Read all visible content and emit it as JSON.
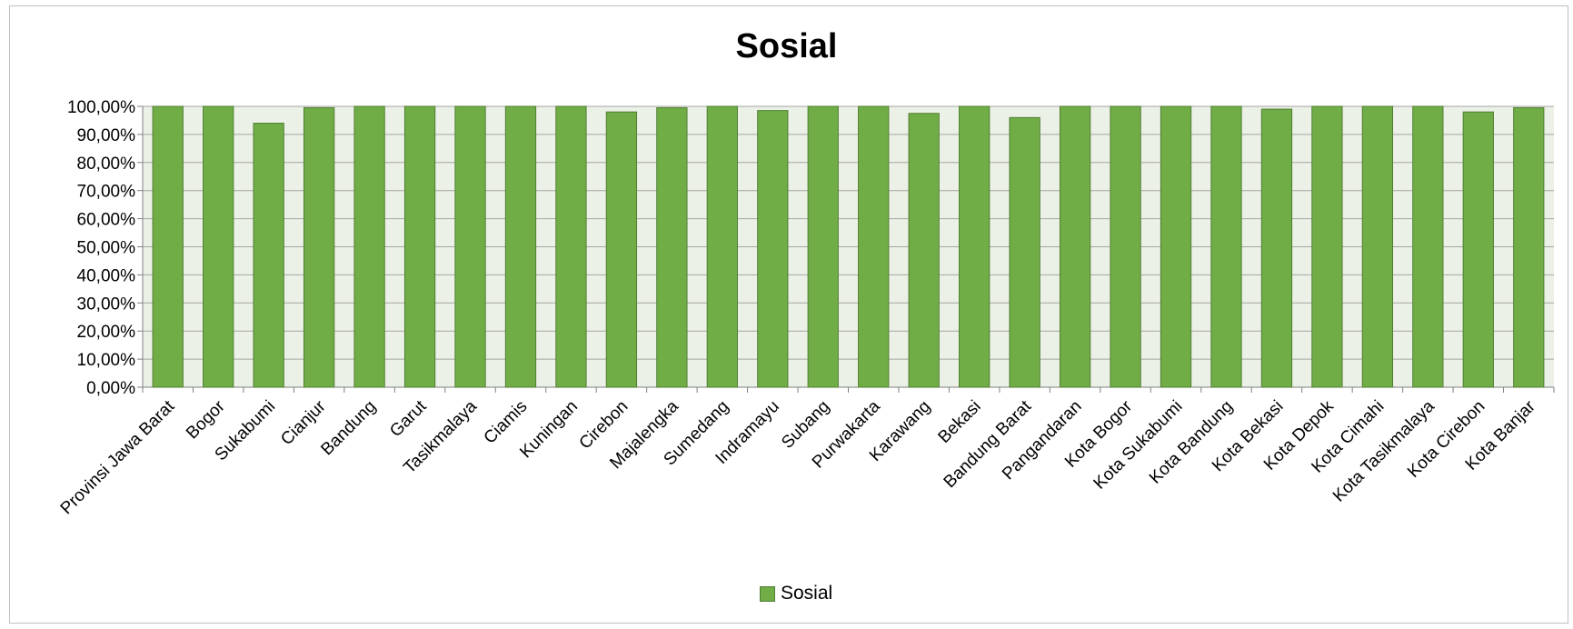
{
  "chart_data": {
    "type": "bar",
    "title": "Sosial",
    "xlabel": "",
    "ylabel": "",
    "ylim": [
      0,
      100
    ],
    "y_ticks": [
      "0,00%",
      "10,00%",
      "20,00%",
      "30,00%",
      "40,00%",
      "50,00%",
      "60,00%",
      "70,00%",
      "80,00%",
      "90,00%",
      "100,00%"
    ],
    "grid": true,
    "legend_position": "bottom",
    "categories": [
      "Provinsi Jawa Barat",
      "Bogor",
      "Sukabumi",
      "Cianjur",
      "Bandung",
      "Garut",
      "Tasikmalaya",
      "Ciamis",
      "Kuningan",
      "Cirebon",
      "Majalengka",
      "Sumedang",
      "Indramayu",
      "Subang",
      "Purwakarta",
      "Karawang",
      "Bekasi",
      "Bandung Barat",
      "Pangandaran",
      "Kota Bogor",
      "Kota Sukabumi",
      "Kota Bandung",
      "Kota Bekasi",
      "Kota Depok",
      "Kota Cimahi",
      "Kota Tasikmalaya",
      "Kota Cirebon",
      "Kota Banjar"
    ],
    "series": [
      {
        "name": "Sosial",
        "color": "#70ad47",
        "values": [
          100,
          100,
          94,
          99.5,
          100,
          100,
          100,
          100,
          100,
          98,
          99.5,
          100,
          98.5,
          100,
          100,
          97.5,
          100,
          96,
          100,
          100,
          100,
          100,
          99,
          100,
          100,
          100,
          98,
          99.5
        ]
      }
    ]
  },
  "colors": {
    "plot_bg": "#ebf1e6",
    "bar_fill": "#70ad47",
    "bar_stroke": "#507e32",
    "grid": "#a6a6a6"
  }
}
